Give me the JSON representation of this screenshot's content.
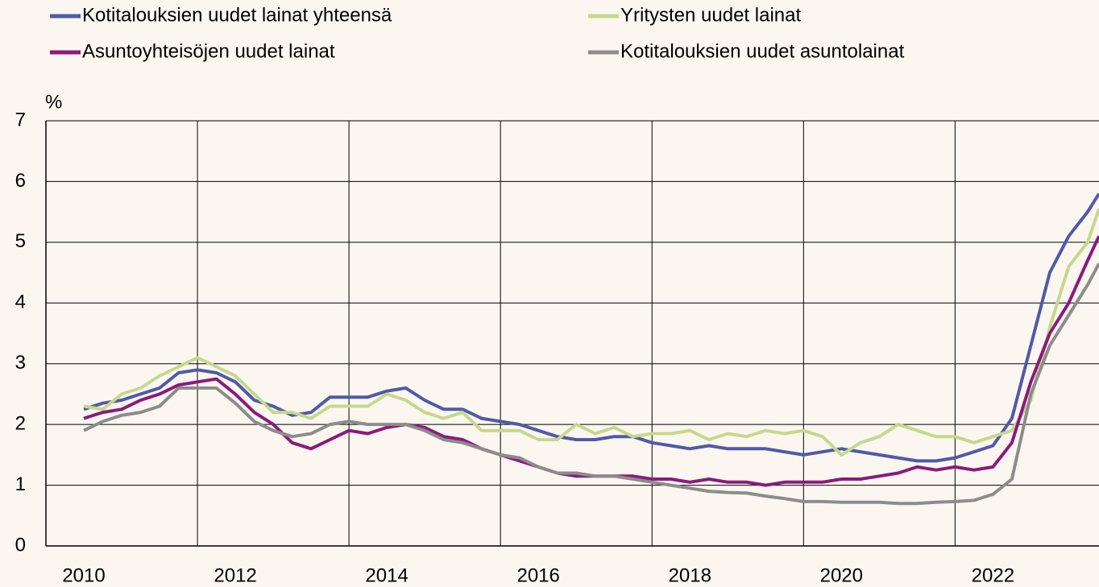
{
  "chart_data": {
    "type": "line",
    "y_label": "%",
    "x": [
      2010.0,
      2010.25,
      2010.5,
      2010.75,
      2011.0,
      2011.25,
      2011.5,
      2011.75,
      2012.0,
      2012.25,
      2012.5,
      2012.75,
      2013.0,
      2013.25,
      2013.5,
      2013.75,
      2014.0,
      2014.25,
      2014.5,
      2014.75,
      2015.0,
      2015.25,
      2015.5,
      2015.75,
      2016.0,
      2016.25,
      2016.5,
      2016.75,
      2017.0,
      2017.25,
      2017.5,
      2017.75,
      2018.0,
      2018.25,
      2018.5,
      2018.75,
      2019.0,
      2019.25,
      2019.5,
      2019.75,
      2020.0,
      2020.25,
      2020.5,
      2020.75,
      2021.0,
      2021.25,
      2021.5,
      2021.75,
      2022.0,
      2022.25,
      2022.5,
      2022.75,
      2023.0,
      2023.25,
      2023.4
    ],
    "series": [
      {
        "name": "Kotitalouksien uudet lainat yhteensä",
        "color": "#4f5aa8",
        "values": [
          2.25,
          2.35,
          2.4,
          2.5,
          2.6,
          2.85,
          2.9,
          2.85,
          2.7,
          2.4,
          2.3,
          2.15,
          2.2,
          2.45,
          2.45,
          2.45,
          2.55,
          2.6,
          2.4,
          2.25,
          2.25,
          2.1,
          2.05,
          2.0,
          1.9,
          1.8,
          1.75,
          1.75,
          1.8,
          1.8,
          1.7,
          1.65,
          1.6,
          1.65,
          1.6,
          1.6,
          1.6,
          1.55,
          1.5,
          1.55,
          1.6,
          1.55,
          1.5,
          1.45,
          1.4,
          1.4,
          1.45,
          1.55,
          1.65,
          2.1,
          3.3,
          4.5,
          5.1,
          5.5,
          5.8
        ]
      },
      {
        "name": "Yritysten uudet lainat",
        "color": "#c6d88c",
        "values": [
          2.3,
          2.25,
          2.5,
          2.6,
          2.8,
          2.95,
          3.1,
          2.95,
          2.8,
          2.5,
          2.2,
          2.2,
          2.1,
          2.3,
          2.3,
          2.3,
          2.5,
          2.4,
          2.2,
          2.1,
          2.2,
          1.9,
          1.9,
          1.9,
          1.75,
          1.75,
          2.0,
          1.85,
          1.95,
          1.8,
          1.85,
          1.85,
          1.9,
          1.75,
          1.85,
          1.8,
          1.9,
          1.85,
          1.9,
          1.8,
          1.5,
          1.7,
          1.8,
          2.0,
          1.9,
          1.8,
          1.8,
          1.7,
          1.8,
          1.9,
          2.4,
          3.6,
          4.6,
          5.0,
          5.55
        ]
      },
      {
        "name": "Asuntoyhteisöjen uudet lainat",
        "color": "#8b1a7c",
        "values": [
          2.1,
          2.2,
          2.25,
          2.4,
          2.5,
          2.65,
          2.7,
          2.75,
          2.5,
          2.2,
          2.0,
          1.7,
          1.6,
          1.75,
          1.9,
          1.85,
          1.95,
          2.0,
          1.95,
          1.8,
          1.75,
          1.6,
          1.5,
          1.4,
          1.3,
          1.2,
          1.15,
          1.15,
          1.15,
          1.15,
          1.1,
          1.1,
          1.05,
          1.1,
          1.05,
          1.05,
          1.0,
          1.05,
          1.05,
          1.05,
          1.1,
          1.1,
          1.15,
          1.2,
          1.3,
          1.25,
          1.3,
          1.25,
          1.3,
          1.7,
          2.7,
          3.5,
          4.0,
          4.7,
          5.1
        ]
      },
      {
        "name": "Kotitalouksien uudet asuntolainat",
        "color": "#8c8c8c",
        "values": [
          1.9,
          2.05,
          2.15,
          2.2,
          2.3,
          2.6,
          2.6,
          2.6,
          2.35,
          2.05,
          1.9,
          1.8,
          1.85,
          2.0,
          2.05,
          2.0,
          2.0,
          2.0,
          1.9,
          1.75,
          1.7,
          1.6,
          1.5,
          1.45,
          1.3,
          1.2,
          1.2,
          1.15,
          1.15,
          1.1,
          1.05,
          1.0,
          0.95,
          0.9,
          0.88,
          0.87,
          0.82,
          0.78,
          0.73,
          0.73,
          0.72,
          0.72,
          0.72,
          0.7,
          0.7,
          0.72,
          0.73,
          0.75,
          0.85,
          1.1,
          2.5,
          3.3,
          3.8,
          4.3,
          4.65
        ]
      }
    ],
    "xlim": [
      2009.5,
      2023.4
    ],
    "xticks": [
      2010,
      2012,
      2014,
      2016,
      2018,
      2020,
      2022
    ],
    "xgrid": [
      2009.5,
      2011.5,
      2013.5,
      2015.5,
      2017.5,
      2019.5,
      2021.5
    ],
    "ylim": [
      0,
      7
    ],
    "yticks": [
      0,
      1,
      2,
      3,
      4,
      5,
      6,
      7
    ],
    "grid": true
  }
}
